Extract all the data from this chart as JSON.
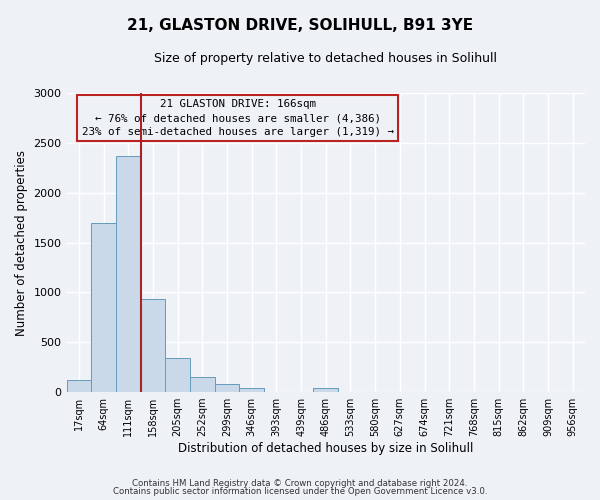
{
  "title": "21, GLASTON DRIVE, SOLIHULL, B91 3YE",
  "subtitle": "Size of property relative to detached houses in Solihull",
  "xlabel": "Distribution of detached houses by size in Solihull",
  "ylabel": "Number of detached properties",
  "bar_labels": [
    "17sqm",
    "64sqm",
    "111sqm",
    "158sqm",
    "205sqm",
    "252sqm",
    "299sqm",
    "346sqm",
    "393sqm",
    "439sqm",
    "486sqm",
    "533sqm",
    "580sqm",
    "627sqm",
    "674sqm",
    "721sqm",
    "768sqm",
    "815sqm",
    "862sqm",
    "909sqm",
    "956sqm"
  ],
  "bar_heights": [
    120,
    1700,
    2370,
    930,
    340,
    155,
    80,
    40,
    0,
    0,
    40,
    0,
    0,
    0,
    0,
    0,
    0,
    0,
    0,
    0,
    0
  ],
  "bar_color": "#c9d9ea",
  "bar_edge_color": "#6699bb",
  "vline_color": "#aa2222",
  "annotation_title": "21 GLASTON DRIVE: 166sqm",
  "annotation_line1": "← 76% of detached houses are smaller (4,386)",
  "annotation_line2": "23% of semi-detached houses are larger (1,319) →",
  "annotation_box_edgecolor": "#bb2222",
  "ylim": [
    0,
    3000
  ],
  "yticks": [
    0,
    500,
    1000,
    1500,
    2000,
    2500,
    3000
  ],
  "footer1": "Contains HM Land Registry data © Crown copyright and database right 2024.",
  "footer2": "Contains public sector information licensed under the Open Government Licence v3.0.",
  "bg_color": "#eef2f7"
}
